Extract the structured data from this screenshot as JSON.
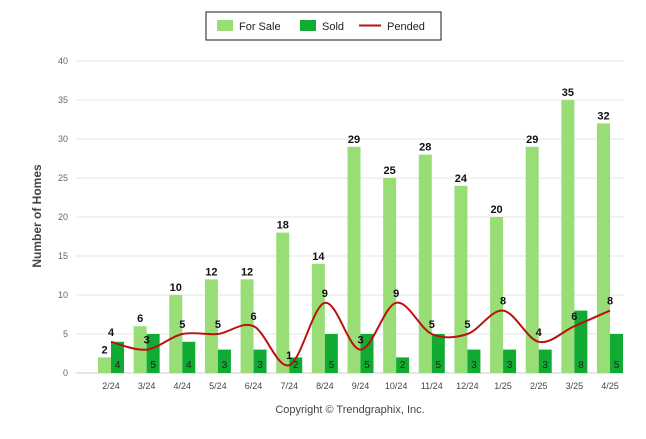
{
  "chart_data": {
    "type": "bar",
    "categories": [
      "2/24",
      "3/24",
      "4/24",
      "5/24",
      "6/24",
      "7/24",
      "8/24",
      "9/24",
      "10/24",
      "11/24",
      "12/24",
      "1/25",
      "2/25",
      "3/25",
      "4/25"
    ],
    "series": [
      {
        "name": "For Sale",
        "kind": "bar",
        "color": "#99dd77",
        "values": [
          2,
          6,
          10,
          12,
          12,
          18,
          14,
          29,
          25,
          28,
          24,
          20,
          29,
          35,
          32
        ]
      },
      {
        "name": "Sold",
        "kind": "bar",
        "color": "#11aa33",
        "values": [
          4,
          5,
          4,
          3,
          3,
          2,
          5,
          5,
          2,
          5,
          3,
          3,
          3,
          8,
          5
        ]
      },
      {
        "name": "Pended",
        "kind": "line",
        "color": "#bb1111",
        "values": [
          4,
          3,
          5,
          5,
          6,
          1,
          9,
          3,
          9,
          5,
          5,
          8,
          4,
          6,
          8
        ]
      }
    ],
    "ylabel": "Number of Homes",
    "xlabel": "",
    "ylim": [
      0,
      40
    ],
    "yticks": [
      0,
      5,
      10,
      15,
      20,
      25,
      30,
      35,
      40
    ],
    "grid": true,
    "legend": "top-center",
    "copyright": "Copyright © Trendgraphix, Inc."
  }
}
